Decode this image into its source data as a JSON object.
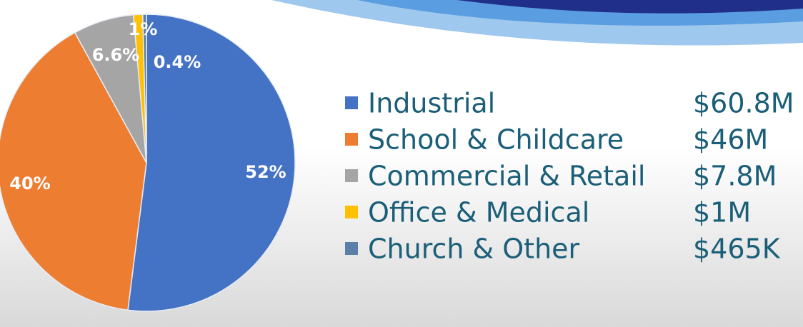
{
  "chart_data": {
    "type": "pie",
    "categories": [
      "Industrial",
      "School & Childcare",
      "Commercial & Retail",
      "Office & Medical",
      "Church & Other"
    ],
    "values": [
      52,
      40,
      6.6,
      1,
      0.4
    ],
    "value_labels": [
      "52%",
      "40%",
      "6.6%",
      "1%",
      "0.4%"
    ],
    "amounts": [
      "$60.8M",
      "$46M",
      "$7.8M",
      "$1M",
      "$465K"
    ],
    "colors": [
      "#4472c4",
      "#ed7d31",
      "#a5a5a5",
      "#ffc000",
      "#5b7fa8"
    ]
  }
}
